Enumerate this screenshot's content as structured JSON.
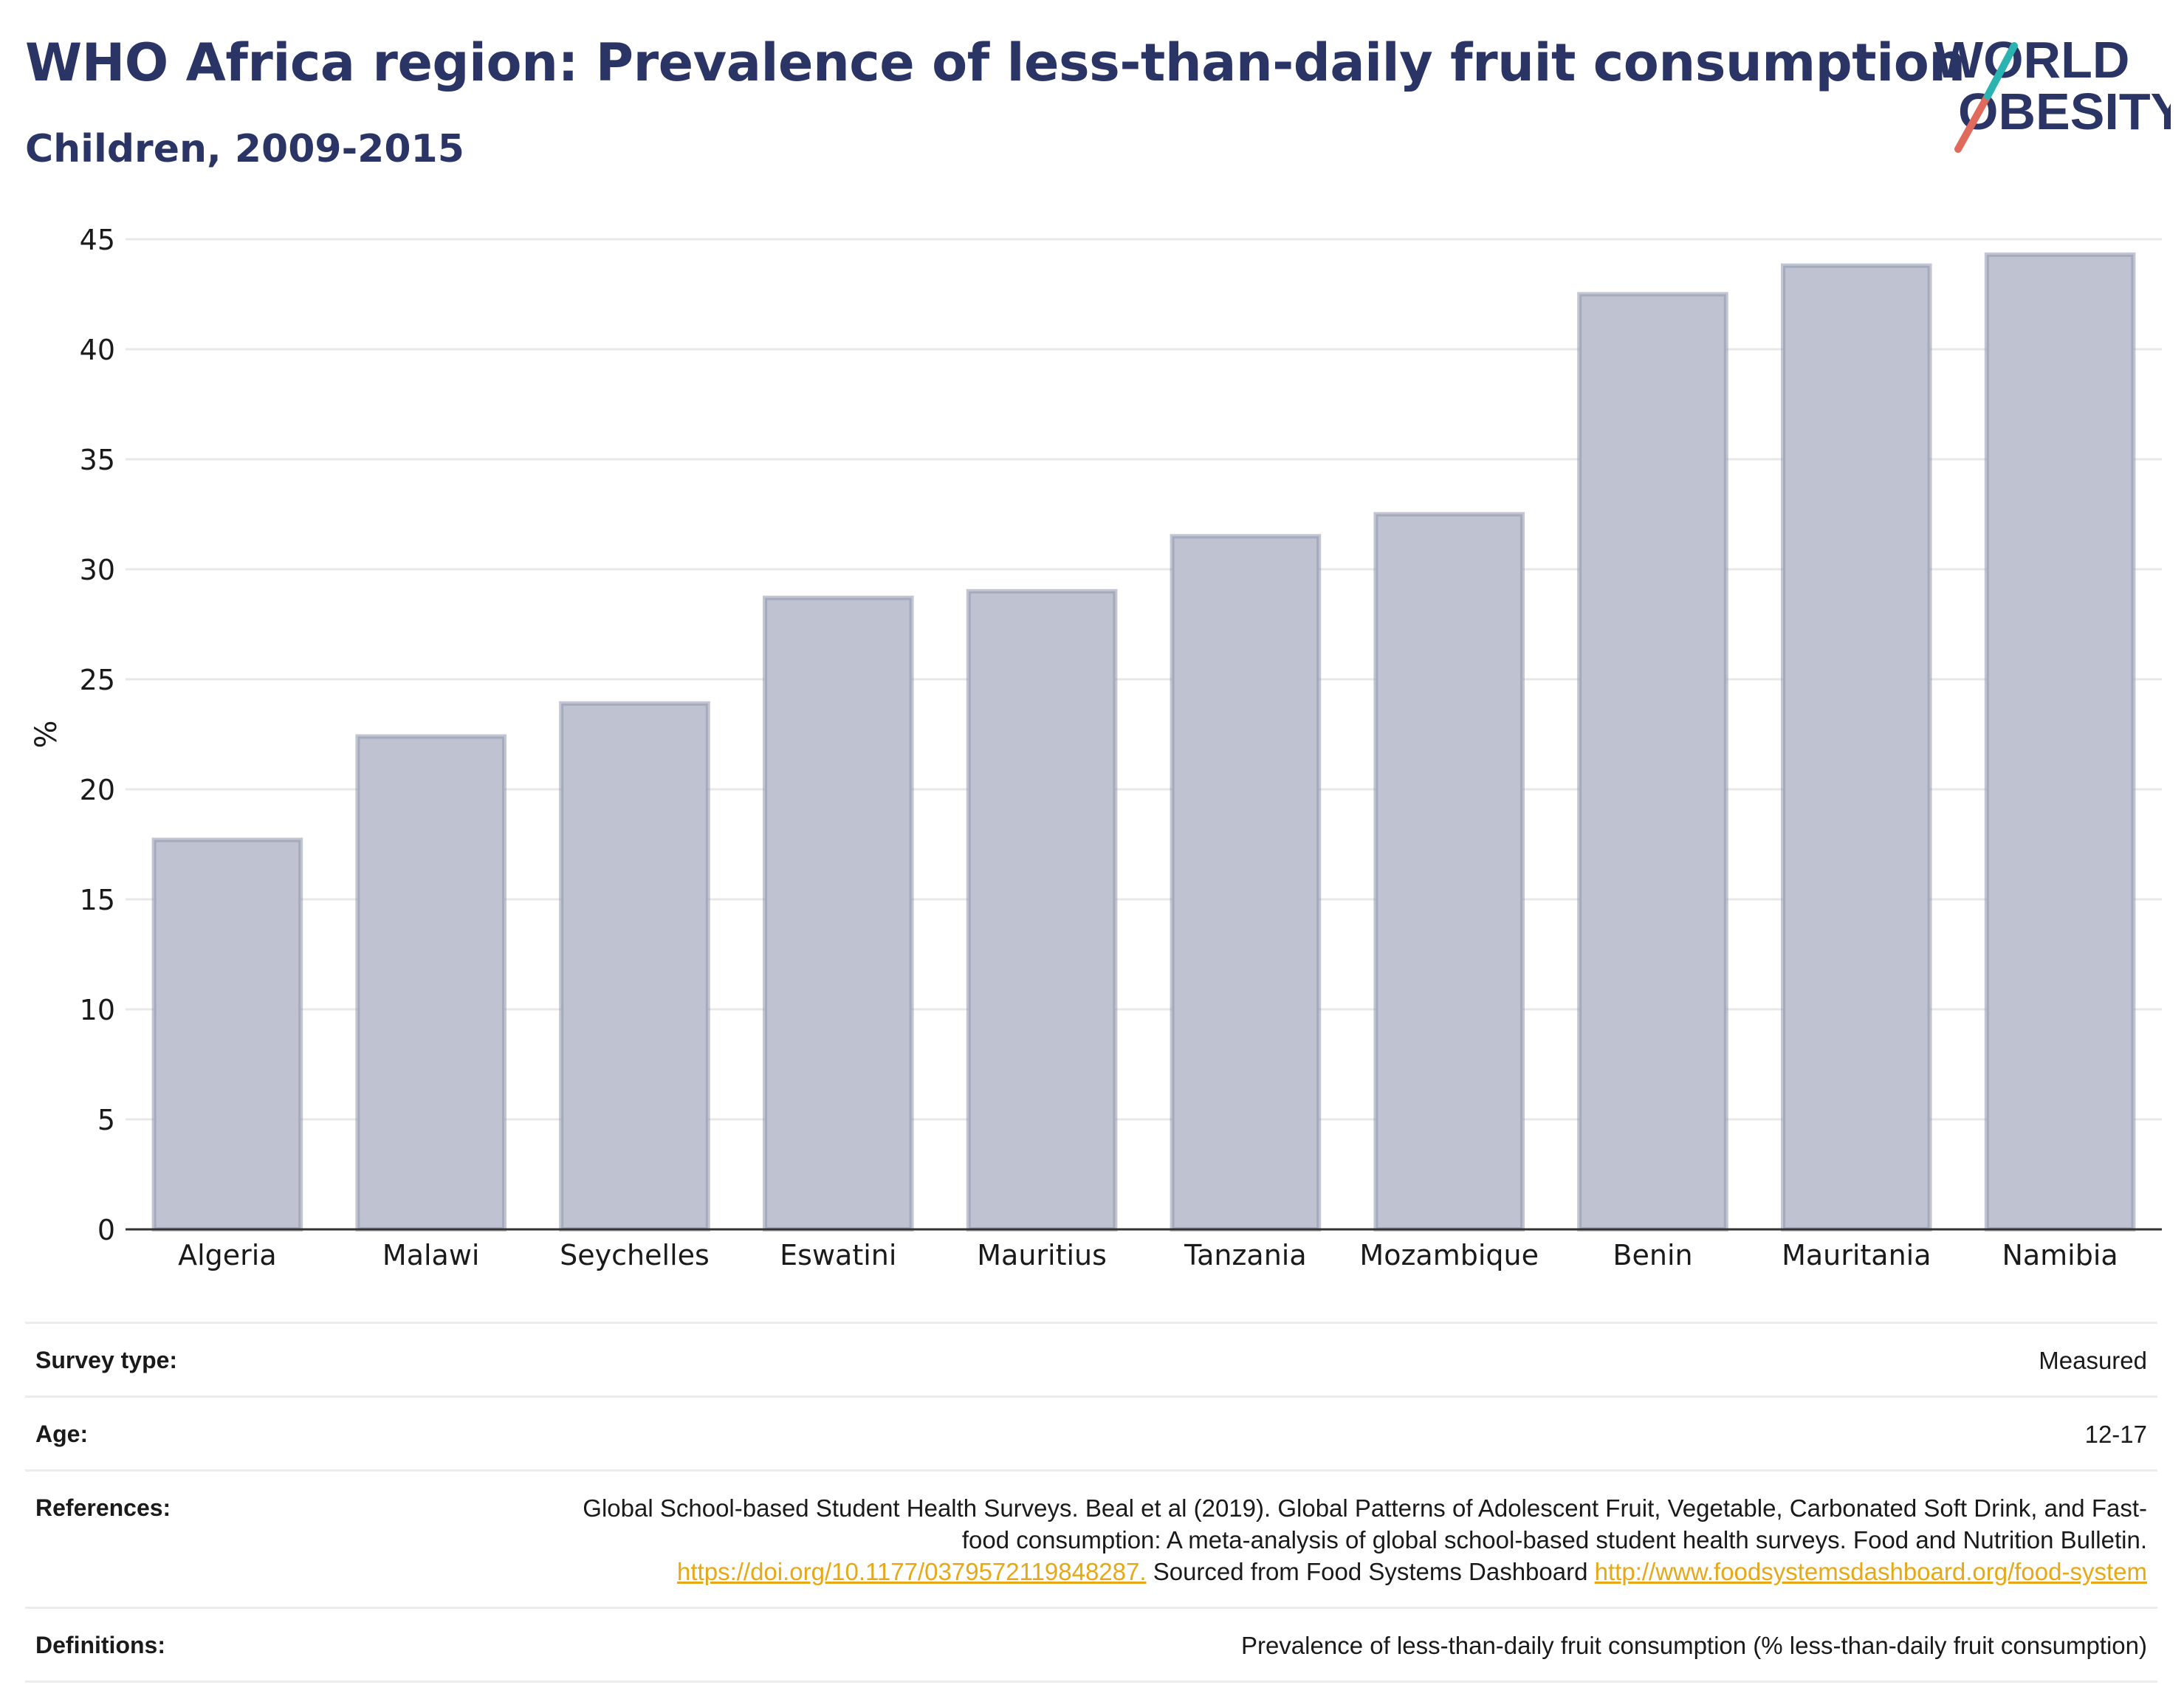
{
  "header": {
    "title": "WHO Africa region: Prevalence of less-than-daily fruit consumption",
    "subtitle": "Children, 2009-2015",
    "logo_line1": "WORLD",
    "logo_line2": "OBESITY"
  },
  "colors": {
    "title": "#2b3565",
    "bar_fill": "#bfc3d1",
    "bar_stroke": "#8f95ad",
    "link": "#e6a817",
    "logo_teal": "#2bb3b1",
    "logo_red": "#e06a5c"
  },
  "chart_data": {
    "type": "bar",
    "ylabel": "%",
    "xlabel": "",
    "ylim": [
      0,
      45
    ],
    "yticks": [
      0,
      5,
      10,
      15,
      20,
      25,
      30,
      35,
      40,
      45
    ],
    "grid": true,
    "categories": [
      "Algeria",
      "Malawi",
      "Seychelles",
      "Eswatini",
      "Mauritius",
      "Tanzania",
      "Mozambique",
      "Benin",
      "Mauritania",
      "Namibia"
    ],
    "values": [
      17.7,
      22.4,
      23.9,
      28.7,
      29.0,
      31.5,
      32.5,
      42.5,
      43.8,
      44.3
    ]
  },
  "meta": {
    "survey_type_label": "Survey type:",
    "survey_type_value": "Measured",
    "age_label": "Age:",
    "age_value": "12-17",
    "references_label": "References:",
    "references_text1": "Global School-based Student Health Surveys. Beal et al (2019). Global Patterns of Adolescent Fruit, Vegetable, Carbonated Soft Drink, and Fast-food consumption: A meta-analysis of global school-based student health surveys. Food and Nutrition Bulletin. ",
    "references_link1": "https://doi.org/10.1177/0379572119848287.",
    "references_text2": " Sourced from Food Systems Dashboard ",
    "references_link2": "http://www.foodsystemsdashboard.org/food-system",
    "definitions_label": "Definitions:",
    "definitions_value": "Prevalence of less-than-daily fruit consumption (% less-than-daily fruit consumption)"
  }
}
